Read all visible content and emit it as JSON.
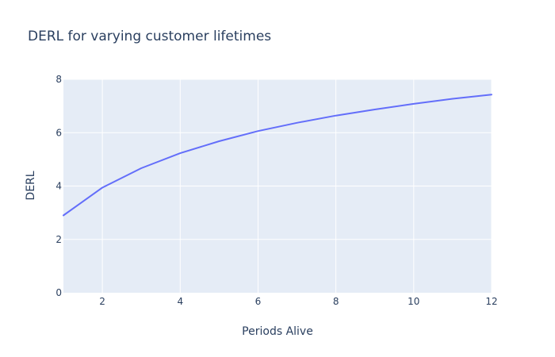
{
  "chart_data": {
    "type": "line",
    "title": "DERL for varying customer lifetimes",
    "xlabel": "Periods Alive",
    "ylabel": "DERL",
    "xlim": [
      1,
      12
    ],
    "ylim": [
      0,
      8
    ],
    "xticks": [
      2,
      4,
      6,
      8,
      10,
      12
    ],
    "yticks": [
      0,
      2,
      4,
      6,
      8
    ],
    "grid": true,
    "legend": "none",
    "series": [
      {
        "color": "#636efa",
        "x": [
          1,
          2,
          3,
          4,
          5,
          6,
          7,
          8,
          9,
          10,
          11,
          12
        ],
        "y": [
          2.9,
          3.94,
          4.67,
          5.23,
          5.68,
          6.06,
          6.37,
          6.64,
          6.87,
          7.08,
          7.27,
          7.43
        ]
      }
    ]
  },
  "colors": {
    "plot_bg": "#e5ecf6",
    "grid": "#ffffff",
    "text": "#2a3f5f"
  }
}
